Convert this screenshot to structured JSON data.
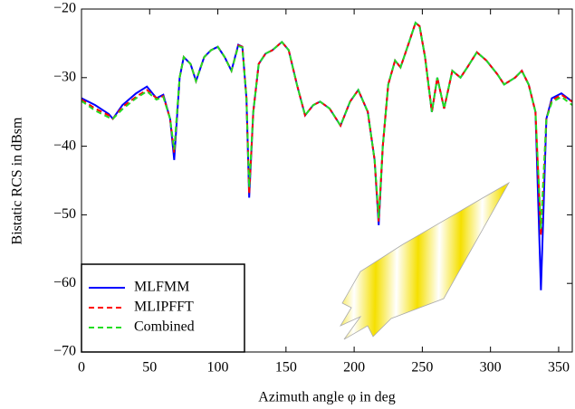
{
  "chart_data": {
    "type": "line",
    "xlabel": "Azimuth angle φ in deg",
    "ylabel": "Bistatic RCS in dBsm",
    "x": [
      0,
      10,
      20,
      23,
      30,
      40,
      48,
      55,
      60,
      65,
      68,
      72,
      75,
      80,
      84,
      90,
      95,
      100,
      105,
      110,
      115,
      118,
      121,
      123,
      126,
      130,
      135,
      140,
      147,
      152,
      158,
      164,
      170,
      175,
      182,
      190,
      197,
      203,
      210,
      215,
      218,
      221,
      225,
      230,
      234,
      240,
      245,
      248,
      252,
      257,
      261,
      266,
      272,
      278,
      283,
      290,
      297,
      305,
      310,
      318,
      323,
      328,
      333,
      337,
      341,
      345,
      352,
      360
    ],
    "series": [
      {
        "name": "MLFMM",
        "color": "#0000ff",
        "style": "solid",
        "values": [
          -33,
          -34,
          -35.3,
          -36,
          -34,
          -32.3,
          -31.3,
          -33,
          -32.5,
          -36,
          -42,
          -30,
          -27,
          -28,
          -30.5,
          -27,
          -26,
          -25.5,
          -27,
          -29,
          -25.2,
          -25.5,
          -33,
          -47.5,
          -35,
          -28,
          -26.5,
          -26,
          -24.8,
          -26,
          -31,
          -35.5,
          -34,
          -33.5,
          -34.5,
          -37,
          -33.5,
          -31.8,
          -35,
          -42,
          -51.5,
          -40,
          -31,
          -27.5,
          -28.5,
          -25,
          -22,
          -22.5,
          -27,
          -35,
          -30,
          -34.5,
          -29,
          -30,
          -28.5,
          -26.3,
          -27.5,
          -29.5,
          -31,
          -30,
          -29,
          -31,
          -35,
          -61,
          -36,
          -33,
          -32.3,
          -33.5
        ]
      },
      {
        "name": "MLIPFFT",
        "color": "#ff0000",
        "style": "dashed",
        "values": [
          -33.2,
          -34.5,
          -35.5,
          -36,
          -34.3,
          -32.8,
          -31.8,
          -33,
          -32.7,
          -36,
          -41,
          -30,
          -27,
          -28,
          -30.5,
          -27,
          -26,
          -25.5,
          -27,
          -29,
          -25.3,
          -25.5,
          -33,
          -47,
          -35,
          -28,
          -26.5,
          -26,
          -24.8,
          -26,
          -31,
          -35.5,
          -34,
          -33.5,
          -34.5,
          -37,
          -33.5,
          -31.8,
          -35,
          -42,
          -51,
          -40,
          -31,
          -27.5,
          -28.5,
          -25,
          -22,
          -22.5,
          -27,
          -35,
          -30,
          -34.5,
          -29,
          -30,
          -28.5,
          -26.3,
          -27.5,
          -29.5,
          -31,
          -30,
          -29,
          -31,
          -35,
          -53,
          -36,
          -33.3,
          -32.5,
          -33.5
        ]
      },
      {
        "name": "Combined",
        "color": "#22dd22",
        "style": "dashed",
        "values": [
          -33.4,
          -34.8,
          -35.8,
          -36,
          -34.6,
          -33,
          -32,
          -33.2,
          -32.8,
          -36,
          -40.5,
          -30,
          -27,
          -28,
          -30.5,
          -27,
          -26,
          -25.5,
          -27,
          -29,
          -25.4,
          -25.6,
          -33,
          -46,
          -35,
          -28,
          -26.5,
          -26,
          -24.8,
          -26,
          -31,
          -35.5,
          -34,
          -33.5,
          -34.5,
          -37,
          -33.5,
          -31.8,
          -35,
          -42,
          -50.5,
          -40,
          -31,
          -27.5,
          -28.5,
          -25,
          -22,
          -22.5,
          -27,
          -35,
          -30,
          -34.5,
          -29,
          -30,
          -28.5,
          -26.3,
          -27.5,
          -29.5,
          -31,
          -30,
          -29,
          -31,
          -35,
          -52,
          -36,
          -33.6,
          -32.8,
          -34
        ]
      }
    ],
    "xlim": [
      0,
      360
    ],
    "ylim": [
      -70,
      -20
    ],
    "xticks": [
      0,
      50,
      100,
      150,
      200,
      250,
      300,
      350
    ],
    "yticks": [
      {
        "value": -70,
        "label": "−70"
      },
      {
        "value": -60,
        "label": "−60"
      },
      {
        "value": -50,
        "label": "−50"
      },
      {
        "value": -40,
        "label": "−40"
      },
      {
        "value": -30,
        "label": "−30"
      },
      {
        "value": -20,
        "label": "−20"
      }
    ],
    "legend": "lower left"
  }
}
